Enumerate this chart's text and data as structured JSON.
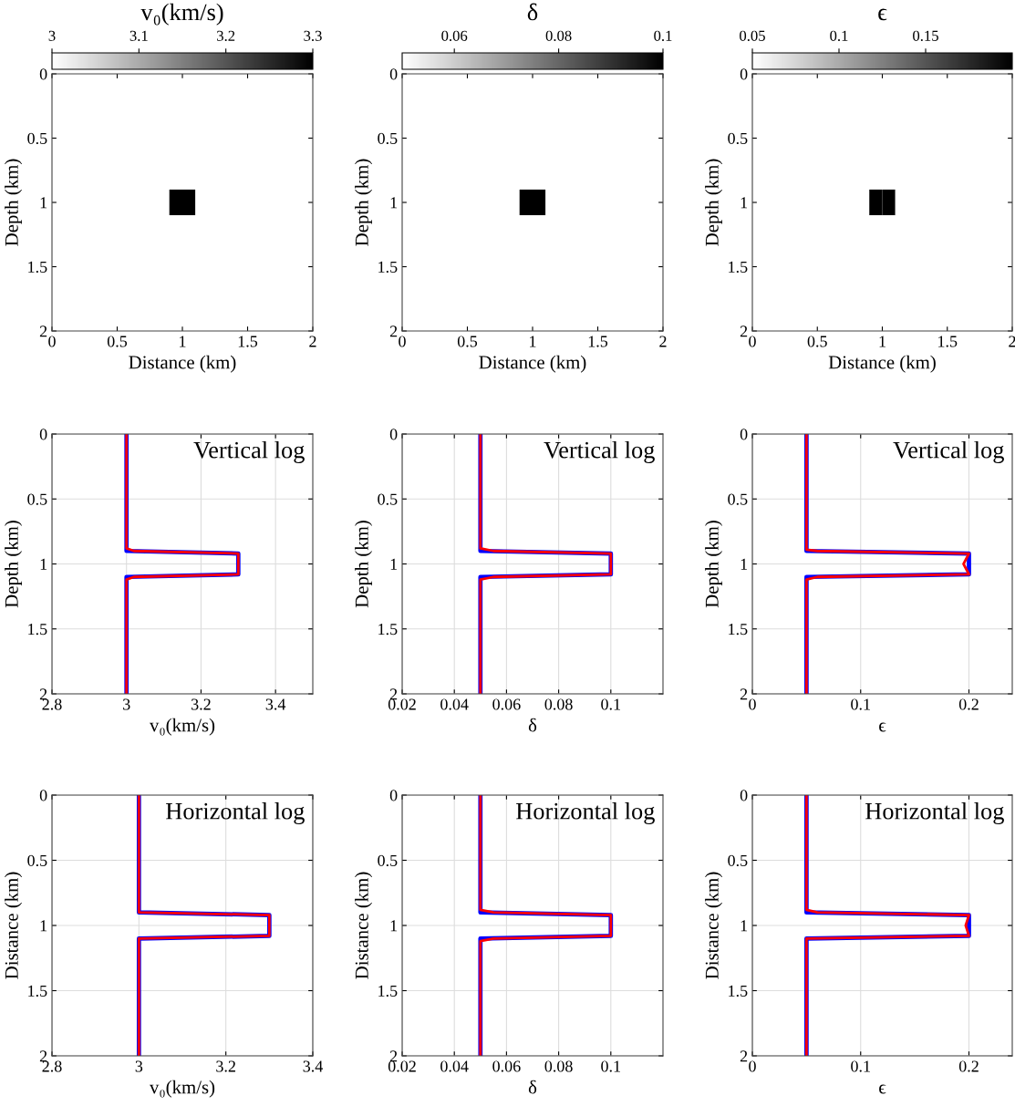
{
  "chart_data": [
    {
      "type": "heatmap",
      "title": "v₀(km/s)",
      "xlabel": "Distance (km)",
      "ylabel": "Depth (km)",
      "cells": [
        [
          3,
          3,
          3,
          3,
          3,
          3,
          3,
          3,
          3,
          3,
          3,
          3,
          3,
          3,
          3,
          3,
          3,
          3,
          3,
          3
        ],
        [
          3,
          3,
          3,
          3,
          3,
          3,
          3,
          3,
          3,
          3,
          3,
          3,
          3,
          3,
          3,
          3,
          3,
          3,
          3,
          3
        ],
        [
          3,
          3,
          3,
          3,
          3,
          3,
          3,
          3,
          3,
          3,
          3,
          3,
          3,
          3,
          3,
          3,
          3,
          3,
          3,
          3
        ],
        [
          3,
          3,
          3,
          3,
          3,
          3,
          3,
          3,
          3,
          3,
          3,
          3,
          3,
          3,
          3,
          3,
          3,
          3,
          3,
          3
        ],
        [
          3,
          3,
          3,
          3,
          3,
          3,
          3,
          3,
          3,
          3,
          3,
          3,
          3,
          3,
          3,
          3,
          3,
          3,
          3,
          3
        ],
        [
          3,
          3,
          3,
          3,
          3,
          3,
          3,
          3,
          3,
          3,
          3,
          3,
          3,
          3,
          3,
          3,
          3,
          3,
          3,
          3
        ],
        [
          3,
          3,
          3,
          3,
          3,
          3,
          3,
          3,
          3,
          3,
          3,
          3,
          3,
          3,
          3,
          3,
          3,
          3,
          3,
          3
        ],
        [
          3,
          3,
          3,
          3,
          3,
          3,
          3,
          3,
          3,
          3,
          3,
          3,
          3,
          3,
          3,
          3,
          3,
          3,
          3,
          3
        ],
        [
          3,
          3,
          3,
          3,
          3,
          3,
          3,
          3,
          3,
          3,
          3,
          3,
          3,
          3,
          3,
          3,
          3,
          3,
          3,
          3
        ],
        [
          3,
          3,
          3,
          3,
          3,
          3,
          3,
          3,
          3,
          3.3,
          3.3,
          3,
          3,
          3,
          3,
          3,
          3,
          3,
          3,
          3
        ],
        [
          3,
          3,
          3,
          3,
          3,
          3,
          3,
          3,
          3,
          3.3,
          3.3,
          3,
          3,
          3,
          3,
          3,
          3,
          3,
          3,
          3
        ],
        [
          3,
          3,
          3,
          3,
          3,
          3,
          3,
          3,
          3,
          3,
          3,
          3,
          3,
          3,
          3,
          3,
          3,
          3,
          3,
          3
        ],
        [
          3,
          3,
          3,
          3,
          3,
          3,
          3,
          3,
          3,
          3,
          3,
          3,
          3,
          3,
          3,
          3,
          3,
          3,
          3,
          3
        ],
        [
          3,
          3,
          3,
          3,
          3,
          3,
          3,
          3,
          3,
          3,
          3,
          3,
          3,
          3,
          3,
          3,
          3,
          3,
          3,
          3
        ],
        [
          3,
          3,
          3,
          3,
          3,
          3,
          3,
          3,
          3,
          3,
          3,
          3,
          3,
          3,
          3,
          3,
          3,
          3,
          3,
          3
        ],
        [
          3,
          3,
          3,
          3,
          3,
          3,
          3,
          3,
          3,
          3,
          3,
          3,
          3,
          3,
          3,
          3,
          3,
          3,
          3,
          3
        ],
        [
          3,
          3,
          3,
          3,
          3,
          3,
          3,
          3,
          3,
          3,
          3,
          3,
          3,
          3,
          3,
          3,
          3,
          3,
          3,
          3
        ],
        [
          3,
          3,
          3,
          3,
          3,
          3,
          3,
          3,
          3,
          3,
          3,
          3,
          3,
          3,
          3,
          3,
          3,
          3,
          3,
          3
        ],
        [
          3,
          3,
          3,
          3,
          3,
          3,
          3,
          3,
          3,
          3,
          3,
          3,
          3,
          3,
          3,
          3,
          3,
          3,
          3,
          3
        ],
        [
          3,
          3,
          3,
          3,
          3,
          3,
          3,
          3,
          3,
          3,
          3,
          3,
          3,
          3,
          3,
          3,
          3,
          3,
          3,
          3
        ]
      ],
      "clim": [
        3,
        3.3
      ],
      "cticks": [
        3,
        3.1,
        3.2,
        3.3
      ],
      "xlim": [
        0,
        2
      ],
      "ylim": [
        2,
        0
      ],
      "xticks": [
        0,
        0.5,
        1,
        1.5,
        2
      ],
      "yticks": [
        0,
        0.5,
        1,
        1.5,
        2
      ]
    },
    {
      "type": "heatmap",
      "title": "δ",
      "xlabel": "Distance (km)",
      "ylabel": "Depth (km)",
      "cells": [
        [
          0.05,
          0.05,
          0.05,
          0.05,
          0.05,
          0.05,
          0.05,
          0.05,
          0.05,
          0.05,
          0.05,
          0.05,
          0.05,
          0.05,
          0.05,
          0.05,
          0.05,
          0.05,
          0.05,
          0.05
        ],
        [
          0.05,
          0.05,
          0.05,
          0.05,
          0.05,
          0.05,
          0.05,
          0.05,
          0.05,
          0.05,
          0.05,
          0.05,
          0.05,
          0.05,
          0.05,
          0.05,
          0.05,
          0.05,
          0.05,
          0.05
        ],
        [
          0.05,
          0.05,
          0.05,
          0.05,
          0.05,
          0.05,
          0.05,
          0.05,
          0.05,
          0.05,
          0.05,
          0.05,
          0.05,
          0.05,
          0.05,
          0.05,
          0.05,
          0.05,
          0.05,
          0.05
        ],
        [
          0.05,
          0.05,
          0.05,
          0.05,
          0.05,
          0.05,
          0.05,
          0.05,
          0.05,
          0.05,
          0.05,
          0.05,
          0.05,
          0.05,
          0.05,
          0.05,
          0.05,
          0.05,
          0.05,
          0.05
        ],
        [
          0.05,
          0.05,
          0.05,
          0.05,
          0.05,
          0.05,
          0.05,
          0.05,
          0.05,
          0.05,
          0.05,
          0.05,
          0.05,
          0.05,
          0.05,
          0.05,
          0.05,
          0.05,
          0.05,
          0.05
        ],
        [
          0.05,
          0.05,
          0.05,
          0.05,
          0.05,
          0.05,
          0.05,
          0.05,
          0.05,
          0.05,
          0.05,
          0.05,
          0.05,
          0.05,
          0.05,
          0.05,
          0.05,
          0.05,
          0.05,
          0.05
        ],
        [
          0.05,
          0.05,
          0.05,
          0.05,
          0.05,
          0.05,
          0.05,
          0.05,
          0.05,
          0.05,
          0.05,
          0.05,
          0.05,
          0.05,
          0.05,
          0.05,
          0.05,
          0.05,
          0.05,
          0.05
        ],
        [
          0.05,
          0.05,
          0.05,
          0.05,
          0.05,
          0.05,
          0.05,
          0.05,
          0.05,
          0.05,
          0.05,
          0.05,
          0.05,
          0.05,
          0.05,
          0.05,
          0.05,
          0.05,
          0.05,
          0.05
        ],
        [
          0.05,
          0.05,
          0.05,
          0.05,
          0.05,
          0.05,
          0.05,
          0.05,
          0.05,
          0.05,
          0.05,
          0.05,
          0.05,
          0.05,
          0.05,
          0.05,
          0.05,
          0.05,
          0.05,
          0.05
        ],
        [
          0.05,
          0.05,
          0.05,
          0.05,
          0.05,
          0.05,
          0.05,
          0.05,
          0.05,
          0.1,
          0.1,
          0.05,
          0.05,
          0.05,
          0.05,
          0.05,
          0.05,
          0.05,
          0.05,
          0.05
        ],
        [
          0.05,
          0.05,
          0.05,
          0.05,
          0.05,
          0.05,
          0.05,
          0.05,
          0.05,
          0.1,
          0.1,
          0.05,
          0.05,
          0.05,
          0.05,
          0.05,
          0.05,
          0.05,
          0.05,
          0.05
        ],
        [
          0.05,
          0.05,
          0.05,
          0.05,
          0.05,
          0.05,
          0.05,
          0.05,
          0.05,
          0.05,
          0.05,
          0.05,
          0.05,
          0.05,
          0.05,
          0.05,
          0.05,
          0.05,
          0.05,
          0.05
        ],
        [
          0.05,
          0.05,
          0.05,
          0.05,
          0.05,
          0.05,
          0.05,
          0.05,
          0.05,
          0.05,
          0.05,
          0.05,
          0.05,
          0.05,
          0.05,
          0.05,
          0.05,
          0.05,
          0.05,
          0.05
        ],
        [
          0.05,
          0.05,
          0.05,
          0.05,
          0.05,
          0.05,
          0.05,
          0.05,
          0.05,
          0.05,
          0.05,
          0.05,
          0.05,
          0.05,
          0.05,
          0.05,
          0.05,
          0.05,
          0.05,
          0.05
        ],
        [
          0.05,
          0.05,
          0.05,
          0.05,
          0.05,
          0.05,
          0.05,
          0.05,
          0.05,
          0.05,
          0.05,
          0.05,
          0.05,
          0.05,
          0.05,
          0.05,
          0.05,
          0.05,
          0.05,
          0.05
        ],
        [
          0.05,
          0.05,
          0.05,
          0.05,
          0.05,
          0.05,
          0.05,
          0.05,
          0.05,
          0.05,
          0.05,
          0.05,
          0.05,
          0.05,
          0.05,
          0.05,
          0.05,
          0.05,
          0.05,
          0.05
        ],
        [
          0.05,
          0.05,
          0.05,
          0.05,
          0.05,
          0.05,
          0.05,
          0.05,
          0.05,
          0.05,
          0.05,
          0.05,
          0.05,
          0.05,
          0.05,
          0.05,
          0.05,
          0.05,
          0.05,
          0.05
        ],
        [
          0.05,
          0.05,
          0.05,
          0.05,
          0.05,
          0.05,
          0.05,
          0.05,
          0.05,
          0.05,
          0.05,
          0.05,
          0.05,
          0.05,
          0.05,
          0.05,
          0.05,
          0.05,
          0.05,
          0.05
        ],
        [
          0.05,
          0.05,
          0.05,
          0.05,
          0.05,
          0.05,
          0.05,
          0.05,
          0.05,
          0.05,
          0.05,
          0.05,
          0.05,
          0.05,
          0.05,
          0.05,
          0.05,
          0.05,
          0.05,
          0.05
        ],
        [
          0.05,
          0.05,
          0.05,
          0.05,
          0.05,
          0.05,
          0.05,
          0.05,
          0.05,
          0.05,
          0.05,
          0.05,
          0.05,
          0.05,
          0.05,
          0.05,
          0.05,
          0.05,
          0.05,
          0.05
        ]
      ],
      "clim": [
        0.05,
        0.1
      ],
      "cticks": [
        0.06,
        0.08,
        0.1
      ],
      "xlim": [
        0,
        2
      ],
      "ylim": [
        2,
        0
      ],
      "xticks": [
        0,
        0.5,
        1,
        1.5,
        2
      ],
      "yticks": [
        0,
        0.5,
        1,
        1.5,
        2
      ]
    },
    {
      "type": "heatmap",
      "title": "ϵ",
      "xlabel": "Distance (km)",
      "ylabel": "Depth (km)",
      "cells": [
        [
          0.05,
          0.05,
          0.05,
          0.05,
          0.05,
          0.05,
          0.05,
          0.05,
          0.05,
          0.05,
          0.05,
          0.05,
          0.05,
          0.05,
          0.05,
          0.05,
          0.05,
          0.05,
          0.05,
          0.05
        ],
        [
          0.05,
          0.05,
          0.05,
          0.05,
          0.05,
          0.05,
          0.05,
          0.05,
          0.05,
          0.05,
          0.05,
          0.05,
          0.05,
          0.05,
          0.05,
          0.05,
          0.05,
          0.05,
          0.05,
          0.05
        ],
        [
          0.05,
          0.05,
          0.05,
          0.05,
          0.05,
          0.05,
          0.05,
          0.05,
          0.05,
          0.05,
          0.05,
          0.05,
          0.05,
          0.05,
          0.05,
          0.05,
          0.05,
          0.05,
          0.05,
          0.05
        ],
        [
          0.05,
          0.05,
          0.05,
          0.05,
          0.05,
          0.05,
          0.05,
          0.05,
          0.05,
          0.05,
          0.05,
          0.05,
          0.05,
          0.05,
          0.05,
          0.05,
          0.05,
          0.05,
          0.05,
          0.05
        ],
        [
          0.05,
          0.05,
          0.05,
          0.05,
          0.05,
          0.05,
          0.05,
          0.05,
          0.05,
          0.05,
          0.05,
          0.05,
          0.05,
          0.05,
          0.05,
          0.05,
          0.05,
          0.05,
          0.05,
          0.05
        ],
        [
          0.05,
          0.05,
          0.05,
          0.05,
          0.05,
          0.05,
          0.05,
          0.05,
          0.05,
          0.05,
          0.05,
          0.05,
          0.05,
          0.05,
          0.05,
          0.05,
          0.05,
          0.05,
          0.05,
          0.05
        ],
        [
          0.05,
          0.05,
          0.05,
          0.05,
          0.05,
          0.05,
          0.05,
          0.05,
          0.05,
          0.05,
          0.05,
          0.05,
          0.05,
          0.05,
          0.05,
          0.05,
          0.05,
          0.05,
          0.05,
          0.05
        ],
        [
          0.05,
          0.05,
          0.05,
          0.05,
          0.05,
          0.05,
          0.05,
          0.05,
          0.05,
          0.05,
          0.05,
          0.05,
          0.05,
          0.05,
          0.05,
          0.05,
          0.05,
          0.05,
          0.05,
          0.05
        ],
        [
          0.05,
          0.05,
          0.05,
          0.05,
          0.05,
          0.05,
          0.05,
          0.05,
          0.05,
          0.05,
          0.05,
          0.05,
          0.05,
          0.05,
          0.05,
          0.05,
          0.05,
          0.05,
          0.05,
          0.05
        ],
        [
          0.05,
          0.05,
          0.05,
          0.05,
          0.05,
          0.05,
          0.05,
          0.05,
          0.05,
          0.2,
          0.2,
          0.05,
          0.05,
          0.05,
          0.05,
          0.05,
          0.05,
          0.05,
          0.05,
          0.05
        ],
        [
          0.05,
          0.05,
          0.05,
          0.05,
          0.05,
          0.05,
          0.05,
          0.05,
          0.05,
          0.2,
          0.2,
          0.05,
          0.05,
          0.05,
          0.05,
          0.05,
          0.05,
          0.05,
          0.05,
          0.05
        ],
        [
          0.05,
          0.05,
          0.05,
          0.05,
          0.05,
          0.05,
          0.05,
          0.05,
          0.05,
          0.05,
          0.05,
          0.05,
          0.05,
          0.05,
          0.05,
          0.05,
          0.05,
          0.05,
          0.05,
          0.05
        ],
        [
          0.05,
          0.05,
          0.05,
          0.05,
          0.05,
          0.05,
          0.05,
          0.05,
          0.05,
          0.05,
          0.05,
          0.05,
          0.05,
          0.05,
          0.05,
          0.05,
          0.05,
          0.05,
          0.05,
          0.05
        ],
        [
          0.05,
          0.05,
          0.05,
          0.05,
          0.05,
          0.05,
          0.05,
          0.05,
          0.05,
          0.05,
          0.05,
          0.05,
          0.05,
          0.05,
          0.05,
          0.05,
          0.05,
          0.05,
          0.05,
          0.05
        ],
        [
          0.05,
          0.05,
          0.05,
          0.05,
          0.05,
          0.05,
          0.05,
          0.05,
          0.05,
          0.05,
          0.05,
          0.05,
          0.05,
          0.05,
          0.05,
          0.05,
          0.05,
          0.05,
          0.05,
          0.05
        ],
        [
          0.05,
          0.05,
          0.05,
          0.05,
          0.05,
          0.05,
          0.05,
          0.05,
          0.05,
          0.05,
          0.05,
          0.05,
          0.05,
          0.05,
          0.05,
          0.05,
          0.05,
          0.05,
          0.05,
          0.05
        ],
        [
          0.05,
          0.05,
          0.05,
          0.05,
          0.05,
          0.05,
          0.05,
          0.05,
          0.05,
          0.05,
          0.05,
          0.05,
          0.05,
          0.05,
          0.05,
          0.05,
          0.05,
          0.05,
          0.05,
          0.05
        ],
        [
          0.05,
          0.05,
          0.05,
          0.05,
          0.05,
          0.05,
          0.05,
          0.05,
          0.05,
          0.05,
          0.05,
          0.05,
          0.05,
          0.05,
          0.05,
          0.05,
          0.05,
          0.05,
          0.05,
          0.05
        ],
        [
          0.05,
          0.05,
          0.05,
          0.05,
          0.05,
          0.05,
          0.05,
          0.05,
          0.05,
          0.05,
          0.05,
          0.05,
          0.05,
          0.05,
          0.05,
          0.05,
          0.05,
          0.05,
          0.05,
          0.05
        ],
        [
          0.05,
          0.05,
          0.05,
          0.05,
          0.05,
          0.05,
          0.05,
          0.05,
          0.05,
          0.05,
          0.05,
          0.05,
          0.05,
          0.05,
          0.05,
          0.05,
          0.05,
          0.05,
          0.05,
          0.05
        ]
      ],
      "clim": [
        0.05,
        0.2
      ],
      "cticks": [
        0.05,
        0.1,
        0.15
      ],
      "xlim": [
        0,
        2
      ],
      "ylim": [
        2,
        0
      ],
      "xticks": [
        0,
        0.5,
        1,
        1.5,
        2
      ],
      "yticks": [
        0,
        0.5,
        1,
        1.5,
        2
      ]
    },
    {
      "type": "line",
      "xlabel": "v₀(km/s)",
      "ylabel": "Depth (km)",
      "annotations": [
        "Vertical log"
      ],
      "xlim": [
        2.8,
        3.5
      ],
      "ylim": [
        2,
        0
      ],
      "xticks": [
        2.8,
        3,
        3.2,
        3.4
      ],
      "yticks": [
        0,
        0.5,
        1,
        1.5,
        2
      ],
      "grid": true,
      "series": [
        {
          "color": "#0000ff",
          "x": [
            3,
            3,
            3.3,
            3.3,
            3,
            3
          ],
          "values": [
            0,
            0.9,
            0.92,
            1.08,
            1.1,
            2
          ]
        },
        {
          "color": "#ff0000",
          "x": [
            3,
            3,
            3.02,
            3.3,
            3.3,
            3.02,
            3,
            3
          ],
          "values": [
            0,
            0.88,
            0.9,
            0.92,
            1.08,
            1.1,
            1.12,
            2
          ]
        }
      ]
    },
    {
      "type": "line",
      "xlabel": "δ",
      "ylabel": "Depth (km)",
      "annotations": [
        "Vertical log"
      ],
      "xlim": [
        0.02,
        0.12
      ],
      "ylim": [
        2,
        0
      ],
      "xticks": [
        0.02,
        0.04,
        0.06,
        0.08,
        0.1
      ],
      "yticks": [
        0,
        0.5,
        1,
        1.5,
        2
      ],
      "grid": true,
      "series": [
        {
          "color": "#0000ff",
          "x": [
            0.05,
            0.05,
            0.1,
            0.1,
            0.05,
            0.05
          ],
          "values": [
            0,
            0.9,
            0.92,
            1.08,
            1.1,
            2
          ]
        },
        {
          "color": "#ff0000",
          "x": [
            0.05,
            0.05,
            0.055,
            0.1,
            0.1,
            0.055,
            0.05,
            0.05
          ],
          "values": [
            0,
            0.88,
            0.9,
            0.92,
            1.08,
            1.1,
            1.12,
            2
          ]
        }
      ]
    },
    {
      "type": "line",
      "xlabel": "ϵ",
      "ylabel": "Depth (km)",
      "annotations": [
        "Vertical log"
      ],
      "xlim": [
        0,
        0.24
      ],
      "ylim": [
        2,
        0
      ],
      "xticks": [
        0,
        0.1,
        0.2
      ],
      "yticks": [
        0,
        0.5,
        1,
        1.5,
        2
      ],
      "grid": true,
      "series": [
        {
          "color": "#0000ff",
          "x": [
            0.05,
            0.05,
            0.2,
            0.2,
            0.05,
            0.05
          ],
          "values": [
            0,
            0.9,
            0.92,
            1.08,
            1.1,
            2
          ]
        },
        {
          "color": "#ff0000",
          "x": [
            0.05,
            0.05,
            0.06,
            0.2,
            0.195,
            0.2,
            0.06,
            0.05,
            0.05
          ],
          "values": [
            0,
            0.89,
            0.9,
            0.92,
            1.0,
            1.08,
            1.1,
            1.12,
            2
          ]
        }
      ]
    },
    {
      "type": "line",
      "xlabel": "v₀(km/s)",
      "ylabel": "Distance (km)",
      "annotations": [
        "Horizontal log"
      ],
      "xlim": [
        2.8,
        3.4
      ],
      "ylim": [
        2,
        0
      ],
      "xticks": [
        2.8,
        3,
        3.2,
        3.4
      ],
      "yticks": [
        0,
        0.5,
        1,
        1.5,
        2
      ],
      "grid": true,
      "series": [
        {
          "color": "#0000ff",
          "x": [
            3,
            3,
            3.3,
            3.3,
            3,
            3
          ],
          "values": [
            0,
            0.9,
            0.92,
            1.08,
            1.1,
            2
          ]
        },
        {
          "color": "#ff0000",
          "x": [
            3,
            3,
            3.3,
            3.3,
            3,
            3
          ],
          "values": [
            0,
            0.9,
            0.92,
            1.08,
            1.1,
            2
          ]
        }
      ]
    },
    {
      "type": "line",
      "xlabel": "δ",
      "ylabel": "Distance (km)",
      "annotations": [
        "Horizontal log"
      ],
      "xlim": [
        0.02,
        0.12
      ],
      "ylim": [
        2,
        0
      ],
      "xticks": [
        0.02,
        0.04,
        0.06,
        0.08,
        0.1
      ],
      "yticks": [
        0,
        0.5,
        1,
        1.5,
        2
      ],
      "grid": true,
      "series": [
        {
          "color": "#0000ff",
          "x": [
            0.05,
            0.05,
            0.1,
            0.1,
            0.05,
            0.05
          ],
          "values": [
            0,
            0.9,
            0.92,
            1.08,
            1.1,
            2
          ]
        },
        {
          "color": "#ff0000",
          "x": [
            0.05,
            0.05,
            0.055,
            0.1,
            0.1,
            0.055,
            0.05,
            0.05
          ],
          "values": [
            0,
            0.88,
            0.9,
            0.92,
            1.08,
            1.1,
            1.12,
            2
          ]
        }
      ]
    },
    {
      "type": "line",
      "xlabel": "ϵ",
      "ylabel": "Distance (km)",
      "annotations": [
        "Horizontal log"
      ],
      "xlim": [
        0,
        0.24
      ],
      "ylim": [
        2,
        0
      ],
      "xticks": [
        0,
        0.1,
        0.2
      ],
      "yticks": [
        0,
        0.5,
        1,
        1.5,
        2
      ],
      "grid": true,
      "series": [
        {
          "color": "#0000ff",
          "x": [
            0.05,
            0.05,
            0.2,
            0.2,
            0.05,
            0.05
          ],
          "values": [
            0,
            0.9,
            0.92,
            1.08,
            1.1,
            2
          ]
        },
        {
          "color": "#ff0000",
          "x": [
            0.05,
            0.05,
            0.06,
            0.2,
            0.197,
            0.2,
            0.05,
            0.05
          ],
          "values": [
            0,
            0.88,
            0.9,
            0.92,
            1.0,
            1.08,
            1.1,
            2
          ]
        }
      ]
    }
  ]
}
